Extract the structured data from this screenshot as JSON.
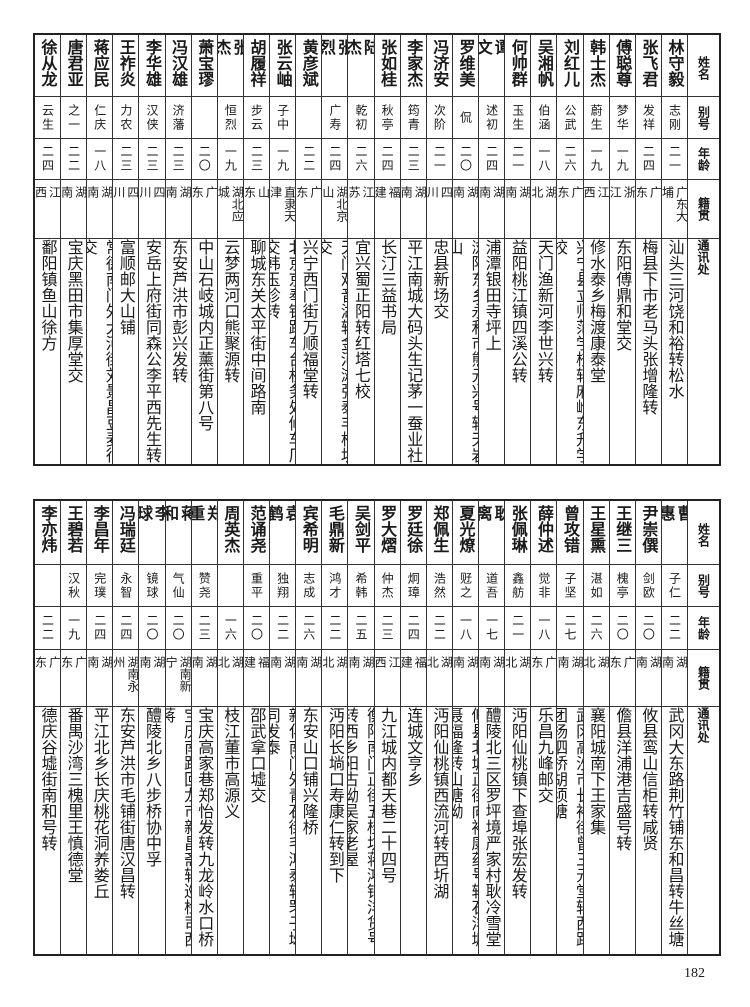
{
  "headers": {
    "name": "姓名",
    "alias": "别号",
    "age": "年龄",
    "origin": "籍贯",
    "address": "通讯处"
  },
  "tables": [
    {
      "rows": [
        {
          "name": "林守毅",
          "alias": "志刚",
          "age": "二一",
          "origin": "广东大埔",
          "address": "汕头三河饶和裕转松水"
        },
        {
          "name": "张飞君",
          "alias": "发祥",
          "age": "二四",
          "origin": "广东",
          "address": "梅县下市老马头张增隆转"
        },
        {
          "name": "傅聪尊",
          "alias": "梦华",
          "age": "一九",
          "origin": "浙江",
          "address": "东阳傅鼎和堂交"
        },
        {
          "name": "韩士杰",
          "alias": "蔚生",
          "age": "一九",
          "origin": "江西",
          "address": "修水泰乡梅渡康泰堂"
        },
        {
          "name": "刘红儿",
          "alias": "公武",
          "age": "二六",
          "origin": "广东",
          "address": "兴宁县立师范学校转麻岭东升学校"
        },
        {
          "name": "吴湘帆",
          "alias": "伯涵",
          "age": "一八",
          "origin": "湖北",
          "address": "天门渔新河李世兴转"
        },
        {
          "name": "何帅群",
          "alias": "玉生",
          "age": "二一",
          "origin": "湖南",
          "address": "益阳桃江镇四溪公转"
        },
        {
          "name": "谭文",
          "alias": "述初",
          "age": "二四",
          "origin": "湖南",
          "address": "浦潭银田寺坪上"
        },
        {
          "name": "罗维美",
          "alias": "侃",
          "age": "二〇",
          "origin": "湖南",
          "address": "浏阳东乡永和市熊元兴号转天岩山"
        },
        {
          "name": "冯济安",
          "alias": "次阶",
          "age": "二一",
          "origin": "四川",
          "address": "忠县新场交"
        },
        {
          "name": "李家杰",
          "alias": "筠青",
          "age": "二三",
          "origin": "湖南",
          "address": "平江南城大码头生记茅一蚕业社"
        },
        {
          "name": "张如桂",
          "alias": "秋亭",
          "age": "二四",
          "origin": "福建",
          "address": "长汀三益书局"
        },
        {
          "name": "陆杰",
          "alias": "乾初",
          "age": "二六",
          "origin": "江苏",
          "address": "宜兴蜀正阳转红塔七校"
        },
        {
          "name": "张烈",
          "alias": "广寿",
          "age": "二四",
          "origin": "湖北京山",
          "address": "天门观音湖转金河滩张泰丰棉坊交"
        },
        {
          "name": "黄彦斌",
          "alias": "",
          "age": "二二",
          "origin": "广东",
          "address": "兴宁西门街万顺福堂转"
        },
        {
          "name": "张云岫",
          "alias": "子中",
          "age": "一九",
          "origin": "直隶天津",
          "address": "北京京奉铁路车台机务处修车厂交韩玉珍转"
        },
        {
          "name": "胡履祥",
          "alias": "步云",
          "age": "二三",
          "origin": "山东",
          "address": "聊城东关太平街中间路南"
        },
        {
          "name": "张杰",
          "alias": "恒烈",
          "age": "一九",
          "origin": "湖北应城",
          "address": "云梦两河口熊聚源转"
        },
        {
          "name": "萧宝璆",
          "alias": "",
          "age": "二〇",
          "origin": "广东",
          "address": "中山石岐城内正薰街第八号"
        },
        {
          "name": "冯汉雄",
          "alias": "济藩",
          "age": "二三",
          "origin": "湖南",
          "address": "东安芦洪市彭兴发转"
        },
        {
          "name": "李华雄",
          "alias": "汉侠",
          "age": "二三",
          "origin": "四川",
          "address": "安岳上府街同森公李平西先生转"
        },
        {
          "name": "王祚炎",
          "alias": "力农",
          "age": "二三",
          "origin": "四川",
          "address": "富顺邮大山铺"
        },
        {
          "name": "蒋应民",
          "alias": "仁庆",
          "age": "一八",
          "origin": "湖南",
          "address": "常德南门外大河街刘景昌豆麦行交"
        },
        {
          "name": "唐君亚",
          "alias": "之一",
          "age": "二二",
          "origin": "湖南",
          "address": "宝庆黑田市集厚堂交"
        },
        {
          "name": "徐从龙",
          "alias": "云生",
          "age": "二四",
          "origin": "江西",
          "address": "鄱阳镇鱼山徐方"
        }
      ]
    },
    {
      "rows": [
        {
          "name": "曹惠",
          "alias": "子仁",
          "age": "二二",
          "origin": "湖南",
          "address": "武冈大东路荆竹铺东和昌转牛丝塘"
        },
        {
          "name": "尹崇僎",
          "alias": "剑欧",
          "age": "二〇",
          "origin": "湖南",
          "address": "攸县鸾山信柜转咸贤"
        },
        {
          "name": "王继三",
          "alias": "槐亭",
          "age": "二〇",
          "origin": "广东",
          "address": "儋县洋浦港吉盛号转"
        },
        {
          "name": "王星熏",
          "alias": "湛如",
          "age": "二六",
          "origin": "湖北",
          "address": "襄阳城南下王家集"
        },
        {
          "name": "曾攻错",
          "alias": "子坚",
          "age": "二七",
          "origin": "湖南",
          "address": "武冈高沙市长裕街曾三元堂转西路团杨泗桥胡须塘"
        },
        {
          "name": "薛仲述",
          "alias": "觉非",
          "age": "一八",
          "origin": "广东",
          "address": "乐昌九峰邮交"
        },
        {
          "name": "张佩琳",
          "alias": "鑫舫",
          "age": "二一",
          "origin": "湖北",
          "address": "沔阳仙桃镇下查埠张宏发转"
        },
        {
          "name": "耿离",
          "alias": "道吾",
          "age": "一七",
          "origin": "湖南",
          "address": "醴陵北三区罗坪境严家村耿冷雪堂"
        },
        {
          "name": "夏光燎",
          "alias": "觃之",
          "age": "一八",
          "origin": "湖南",
          "address": "攸县北城正街向裕康药号转石洋塘聂福隆转山塘坳"
        },
        {
          "name": "郑佩生",
          "alias": "浩然",
          "age": "二二",
          "origin": "湖北",
          "address": "沔阳仙桃镇西流河转西圻湖"
        },
        {
          "name": "罗廷徐",
          "alias": "炯璋",
          "age": "二四",
          "origin": "福建",
          "address": "连城文亨乡"
        },
        {
          "name": "罗大熠",
          "alias": "仲杰",
          "age": "二三",
          "origin": "江西",
          "address": "九江城内都天巷二十四号"
        },
        {
          "name": "吴剑平",
          "alias": "希韩",
          "age": "二五",
          "origin": "湖南",
          "address": "衡阳南门正街五桂坊蒋鸿钧洋货号转西乡阳古坳吴家老屋"
        },
        {
          "name": "毛鼎新",
          "alias": "鸿才",
          "age": "二二",
          "origin": "湖北",
          "address": "沔阳长埫口寿康仁转到下"
        },
        {
          "name": "宾希明",
          "alias": "志成",
          "age": "二六",
          "origin": "湖南",
          "address": "东安山口铺兴隆桥"
        },
        {
          "name": "袁鹤",
          "alias": "独翔",
          "age": "二二",
          "origin": "湖南",
          "address": "新化南门外青石街毛鸿泰转罘子坳同发泰"
        },
        {
          "name": "范诵尧",
          "alias": "重平",
          "age": "二〇",
          "origin": "福建",
          "address": "邵武拿口墟交"
        },
        {
          "name": "周英杰",
          "alias": "",
          "age": "一六",
          "origin": "湖北",
          "address": "枝江董市高源义"
        },
        {
          "name": "郑重",
          "alias": "赞尧",
          "age": "二三",
          "origin": "湖南",
          "address": "宝庆高家巷郑怡发转九龙岭水口桥"
        },
        {
          "name": "蒋和",
          "alias": "气仙",
          "age": "二〇",
          "origin": "湖南新宁",
          "address": "宝庆南路回龙市新昌斋转巡检司西蒋"
        },
        {
          "name": "李球",
          "alias": "镜球",
          "age": "二〇",
          "origin": "湖南",
          "address": "醴陵北乡八步桥协中孚"
        },
        {
          "name": "冯瑞廷",
          "alias": "永智",
          "age": "二四",
          "origin": "湖南永州",
          "address": "东安芦洪市毛铺街唐汉昌转"
        },
        {
          "name": "李昌年",
          "alias": "完璞",
          "age": "二四",
          "origin": "湖南",
          "address": "平江北乡长庆桃花洞养娄丘"
        },
        {
          "name": "王碧若",
          "alias": "汉秋",
          "age": "一九",
          "origin": "广东",
          "address": "番禺沙湾三槐里王慎德堂"
        },
        {
          "name": "李亦炜",
          "alias": "",
          "age": "二二",
          "origin": "广东",
          "address": "德庆谷墟街南和号转"
        }
      ]
    }
  ],
  "page_number": "182"
}
